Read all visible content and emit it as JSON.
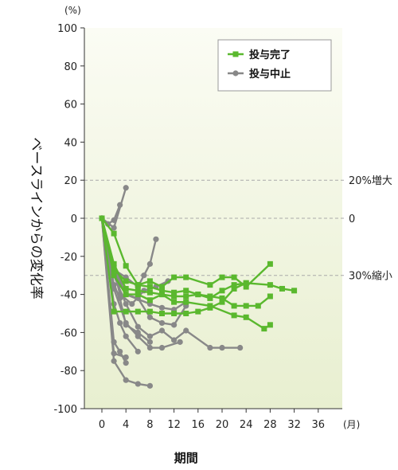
{
  "chart_data": {
    "type": "line",
    "title": "",
    "xlabel": "期間",
    "ylabel": "ベースラインからの変化率",
    "y_unit": "(%)",
    "x_unit": "(月)",
    "xlim": [
      0,
      40
    ],
    "ylim": [
      -100,
      100
    ],
    "xticks": [
      0,
      4,
      8,
      12,
      16,
      20,
      24,
      28,
      32,
      36
    ],
    "yticks": [
      100,
      80,
      60,
      40,
      20,
      0,
      -20,
      -40,
      -60,
      -80,
      -100
    ],
    "reference_lines": [
      {
        "y": 20,
        "label": "20%増大"
      },
      {
        "y": 0,
        "label": "0"
      },
      {
        "y": -30,
        "label": "30%縮小"
      }
    ],
    "legend": {
      "placement": "top-right",
      "entries": [
        {
          "label": "投与完了",
          "color": "#5ab82e",
          "marker": "square"
        },
        {
          "label": "投与中止",
          "color": "#888888",
          "marker": "circle"
        }
      ]
    },
    "series": [
      {
        "group": "投与中止",
        "points": [
          [
            0,
            0
          ],
          [
            2,
            -5
          ],
          [
            4,
            16
          ]
        ]
      },
      {
        "group": "投与中止",
        "points": [
          [
            0,
            0
          ],
          [
            1,
            -3
          ],
          [
            2,
            -1
          ],
          [
            3,
            7
          ]
        ]
      },
      {
        "group": "投与中止",
        "points": [
          [
            0,
            0
          ],
          [
            2,
            -27
          ],
          [
            4,
            -31
          ],
          [
            6,
            -36
          ],
          [
            7,
            -30
          ],
          [
            8,
            -24
          ],
          [
            9,
            -11
          ]
        ]
      },
      {
        "group": "投与中止",
        "points": [
          [
            0,
            0
          ],
          [
            1,
            -20
          ],
          [
            3,
            -35
          ],
          [
            4,
            -40
          ],
          [
            8,
            -45
          ],
          [
            10,
            -47
          ],
          [
            12,
            -48
          ],
          [
            14,
            -44
          ]
        ]
      },
      {
        "group": "投与中止",
        "points": [
          [
            0,
            0
          ],
          [
            2,
            -25
          ],
          [
            4,
            -40
          ],
          [
            6,
            -42
          ],
          [
            8,
            -52
          ],
          [
            10,
            -55
          ],
          [
            12,
            -56
          ],
          [
            14,
            -46
          ]
        ]
      },
      {
        "group": "投与中止",
        "points": [
          [
            0,
            0
          ],
          [
            2,
            -30
          ],
          [
            4,
            -45
          ],
          [
            6,
            -57
          ],
          [
            8,
            -62
          ],
          [
            10,
            -59
          ],
          [
            12,
            -64
          ],
          [
            14,
            -59
          ],
          [
            18,
            -68
          ],
          [
            20,
            -68
          ],
          [
            23,
            -68
          ]
        ]
      },
      {
        "group": "投与中止",
        "points": [
          [
            0,
            0
          ],
          [
            2,
            -37
          ],
          [
            4,
            -55
          ],
          [
            6,
            -62
          ],
          [
            8,
            -68
          ],
          [
            10,
            -68
          ],
          [
            13,
            -65
          ]
        ]
      },
      {
        "group": "投与中止",
        "points": [
          [
            0,
            0
          ],
          [
            2,
            -45
          ],
          [
            3,
            -55
          ],
          [
            4,
            -62
          ],
          [
            6,
            -70
          ]
        ]
      },
      {
        "group": "投与中止",
        "points": [
          [
            0,
            0
          ],
          [
            2,
            -65
          ],
          [
            3,
            -70
          ],
          [
            4,
            -76
          ]
        ]
      },
      {
        "group": "投与中止",
        "points": [
          [
            0,
            0
          ],
          [
            2,
            -71
          ],
          [
            4,
            -73
          ]
        ]
      },
      {
        "group": "投与中止",
        "points": [
          [
            0,
            0
          ],
          [
            2,
            -75
          ],
          [
            4,
            -85
          ],
          [
            6,
            -87
          ],
          [
            8,
            -88
          ]
        ]
      },
      {
        "group": "投与中止",
        "points": [
          [
            0,
            0
          ],
          [
            2,
            -35
          ],
          [
            3,
            -42
          ],
          [
            4,
            -56
          ],
          [
            6,
            -60
          ],
          [
            8,
            -65
          ]
        ]
      },
      {
        "group": "投与中止",
        "points": [
          [
            0,
            0
          ],
          [
            3,
            -40
          ],
          [
            5,
            -45
          ],
          [
            7,
            -38
          ],
          [
            9,
            -36
          ],
          [
            11,
            -33
          ]
        ]
      },
      {
        "group": "投与完了",
        "points": [
          [
            0,
            0
          ],
          [
            2,
            -8
          ],
          [
            4,
            -25
          ],
          [
            6,
            -35
          ],
          [
            8,
            -33
          ],
          [
            10,
            -36
          ],
          [
            12,
            -31
          ],
          [
            14,
            -31
          ],
          [
            18,
            -35
          ],
          [
            20,
            -31
          ],
          [
            22,
            -31
          ],
          [
            24,
            -36
          ],
          [
            28,
            -24
          ]
        ]
      },
      {
        "group": "投与完了",
        "points": [
          [
            0,
            0
          ],
          [
            2,
            -27
          ],
          [
            4,
            -33
          ],
          [
            6,
            -35
          ],
          [
            8,
            -36
          ],
          [
            10,
            -38
          ],
          [
            12,
            -39
          ],
          [
            14,
            -38
          ],
          [
            16,
            -40
          ],
          [
            18,
            -42
          ],
          [
            20,
            -38
          ],
          [
            22,
            -35
          ],
          [
            24,
            -34
          ],
          [
            28,
            -35
          ],
          [
            30,
            -37
          ],
          [
            32,
            -38
          ]
        ]
      },
      {
        "group": "投与完了",
        "points": [
          [
            0,
            0
          ],
          [
            2,
            -24
          ],
          [
            4,
            -37
          ],
          [
            6,
            -38
          ],
          [
            8,
            -39
          ],
          [
            10,
            -40
          ],
          [
            12,
            -41
          ],
          [
            14,
            -41
          ],
          [
            16,
            -40
          ],
          [
            18,
            -41
          ],
          [
            20,
            -42
          ],
          [
            22,
            -46
          ],
          [
            24,
            -46
          ],
          [
            26,
            -46
          ],
          [
            28,
            -41
          ]
        ]
      },
      {
        "group": "投与完了",
        "points": [
          [
            0,
            0
          ],
          [
            2,
            -30
          ],
          [
            4,
            -40
          ],
          [
            6,
            -40
          ],
          [
            8,
            -43
          ],
          [
            10,
            -40
          ],
          [
            12,
            -44
          ],
          [
            14,
            -44
          ],
          [
            18,
            -46
          ],
          [
            22,
            -51
          ],
          [
            24,
            -52
          ],
          [
            27,
            -58
          ],
          [
            28,
            -56
          ]
        ]
      },
      {
        "group": "投与完了",
        "points": [
          [
            0,
            0
          ],
          [
            2,
            -49
          ],
          [
            4,
            -49
          ],
          [
            6,
            -49
          ],
          [
            8,
            -49
          ],
          [
            10,
            -50
          ],
          [
            12,
            -50
          ],
          [
            14,
            -50
          ],
          [
            16,
            -49
          ],
          [
            18,
            -47
          ],
          [
            20,
            -44
          ],
          [
            22,
            -37
          ],
          [
            24,
            -34
          ]
        ]
      }
    ]
  }
}
